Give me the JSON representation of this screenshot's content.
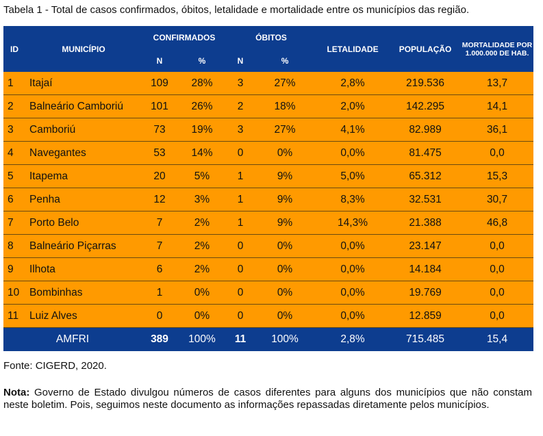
{
  "caption": "Tabela 1 - Total de casos confirmados, óbitos, letalidade e mortalidade entre os municípios das região.",
  "headers": {
    "id": "ID",
    "municipio": "MUNICÍPIO",
    "confirmados": "CONFIRMADOS",
    "obitos": "ÓBITOS",
    "n": "N",
    "pct": "%",
    "letalidade": "LETALIDADE",
    "populacao": "POPULAÇÃO",
    "mortalidade": "MORTALIDADE POR 1.000.000 DE HAB."
  },
  "rows": [
    [
      "1",
      "Itajaí",
      "109",
      "28%",
      "3",
      "27%",
      "2,8%",
      "219.536",
      "13,7"
    ],
    [
      "2",
      "Balneário Camboriú",
      "101",
      "26%",
      "2",
      "18%",
      "2,0%",
      "142.295",
      "14,1"
    ],
    [
      "3",
      "Camboriú",
      "73",
      "19%",
      "3",
      "27%",
      "4,1%",
      "82.989",
      "36,1"
    ],
    [
      "4",
      "Navegantes",
      "53",
      "14%",
      "0",
      "0%",
      "0,0%",
      "81.475",
      "0,0"
    ],
    [
      "5",
      "Itapema",
      "20",
      "5%",
      "1",
      "9%",
      "5,0%",
      "65.312",
      "15,3"
    ],
    [
      "6",
      "Penha",
      "12",
      "3%",
      "1",
      "9%",
      "8,3%",
      "32.531",
      "30,7"
    ],
    [
      "7",
      "Porto Belo",
      "7",
      "2%",
      "1",
      "9%",
      "14,3%",
      "21.388",
      "46,8"
    ],
    [
      "8",
      "Balneário Piçarras",
      "7",
      "2%",
      "0",
      "0%",
      "0,0%",
      "23.147",
      "0,0"
    ],
    [
      "9",
      "Ilhota",
      "6",
      "2%",
      "0",
      "0%",
      "0,0%",
      "14.184",
      "0,0"
    ],
    [
      "10",
      "Bombinhas",
      "1",
      "0%",
      "0",
      "0%",
      "0,0%",
      "19.769",
      "0,0"
    ],
    [
      "11",
      "Luiz Alves",
      "0",
      "0%",
      "0",
      "0%",
      "0,0%",
      "12.859",
      "0,0"
    ]
  ],
  "total": [
    "AMFRI",
    "389",
    "100%",
    "11",
    "100%",
    "2,8%",
    "715.485",
    "15,4"
  ],
  "fonte": "Fonte: CIGERD, 2020.",
  "nota_label": "Nota:",
  "nota_text": " Governo de Estado divulgou números de casos diferentes para alguns dos municípios que não constam neste boletim. Pois, seguimos neste documento as informações repassadas diretamente pelos municípios."
}
